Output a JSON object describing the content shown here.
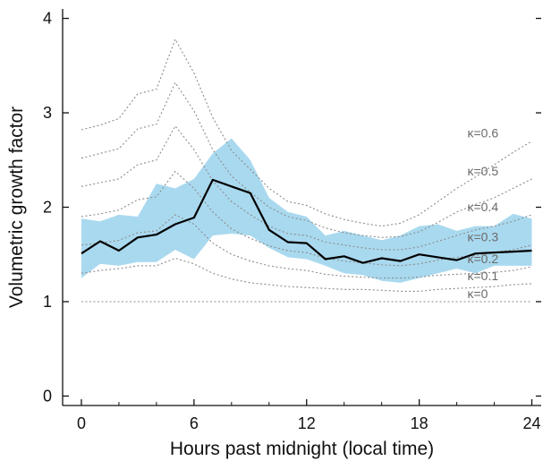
{
  "chart_data": {
    "type": "line",
    "title": "",
    "xlabel": "Hours past midnight (local time)",
    "ylabel": "Volumetric growth factor",
    "xlim": [
      -1,
      24.5
    ],
    "ylim": [
      -0.1,
      4.1
    ],
    "xticks": [
      0,
      6,
      12,
      18,
      24
    ],
    "yticks": [
      0,
      1,
      2,
      3,
      4
    ],
    "grid": false,
    "colors": {
      "band": "#a9d9ef",
      "median": "#000000",
      "kappa_lines": "#8c8c8c",
      "axis": "#111111"
    },
    "x": [
      0,
      1,
      2,
      3,
      4,
      5,
      6,
      7,
      8,
      9,
      10,
      11,
      12,
      13,
      14,
      15,
      16,
      17,
      18,
      19,
      20,
      21,
      22,
      23,
      24
    ],
    "band": {
      "upper": [
        1.88,
        1.85,
        1.92,
        1.9,
        2.25,
        2.2,
        2.3,
        2.57,
        2.73,
        2.5,
        2.1,
        1.95,
        1.9,
        1.7,
        1.75,
        1.7,
        1.65,
        1.7,
        1.8,
        1.82,
        1.75,
        1.8,
        1.8,
        1.93,
        1.88
      ],
      "lower": [
        1.25,
        1.4,
        1.38,
        1.42,
        1.42,
        1.55,
        1.45,
        1.7,
        1.72,
        1.7,
        1.57,
        1.47,
        1.45,
        1.38,
        1.3,
        1.28,
        1.22,
        1.2,
        1.25,
        1.3,
        1.35,
        1.3,
        1.38,
        1.38,
        1.38
      ]
    },
    "series": [
      {
        "values": [
          1.51,
          1.64,
          1.54,
          1.68,
          1.71,
          1.82,
          1.89,
          2.29,
          2.22,
          2.15,
          1.76,
          1.63,
          1.62,
          1.45,
          1.48,
          1.41,
          1.46,
          1.43,
          1.5,
          1.47,
          1.44,
          1.51,
          1.52,
          1.53,
          1.54
        ]
      }
    ],
    "kappa_curves": [
      {
        "label": "κ=0",
        "values": [
          1.0,
          1.0,
          1.0,
          1.0,
          1.0,
          1.0,
          1.0,
          1.0,
          1.0,
          1.0,
          1.0,
          1.0,
          1.0,
          1.0,
          1.0,
          1.0,
          1.0,
          1.0,
          1.0,
          1.0,
          1.0,
          1.0,
          1.0,
          1.0,
          1.0
        ]
      },
      {
        "label": "κ=0.1",
        "values": [
          1.3,
          1.33,
          1.35,
          1.38,
          1.38,
          1.46,
          1.4,
          1.3,
          1.24,
          1.2,
          1.18,
          1.16,
          1.15,
          1.14,
          1.13,
          1.13,
          1.12,
          1.11,
          1.11,
          1.13,
          1.14,
          1.15,
          1.16,
          1.18,
          1.19
        ]
      },
      {
        "label": "κ=0.2",
        "values": [
          1.6,
          1.62,
          1.65,
          1.73,
          1.75,
          1.92,
          1.82,
          1.62,
          1.5,
          1.43,
          1.38,
          1.35,
          1.33,
          1.29,
          1.27,
          1.26,
          1.25,
          1.25,
          1.26,
          1.28,
          1.29,
          1.3,
          1.31,
          1.33,
          1.37
        ]
      },
      {
        "label": "κ=0.3",
        "values": [
          1.9,
          1.93,
          1.97,
          2.08,
          2.11,
          2.38,
          2.2,
          1.95,
          1.77,
          1.67,
          1.59,
          1.54,
          1.52,
          1.46,
          1.43,
          1.41,
          1.39,
          1.38,
          1.4,
          1.44,
          1.47,
          1.49,
          1.52,
          1.55,
          1.6
        ]
      },
      {
        "label": "κ=0.4",
        "values": [
          2.22,
          2.26,
          2.3,
          2.45,
          2.5,
          2.86,
          2.61,
          2.28,
          2.06,
          1.92,
          1.8,
          1.72,
          1.7,
          1.63,
          1.6,
          1.57,
          1.55,
          1.55,
          1.58,
          1.64,
          1.7,
          1.76,
          1.8,
          1.85,
          1.92
        ]
      },
      {
        "label": "κ=0.5",
        "values": [
          2.52,
          2.57,
          2.62,
          2.83,
          2.88,
          3.32,
          3.02,
          2.61,
          2.33,
          2.16,
          2.0,
          1.9,
          1.86,
          1.78,
          1.73,
          1.7,
          1.68,
          1.69,
          1.74,
          1.84,
          1.95,
          2.03,
          2.1,
          2.2,
          2.3
        ]
      },
      {
        "label": "κ=0.6",
        "values": [
          2.82,
          2.87,
          2.94,
          3.2,
          3.25,
          3.78,
          3.42,
          2.95,
          2.6,
          2.4,
          2.2,
          2.06,
          2.02,
          1.93,
          1.87,
          1.83,
          1.8,
          1.83,
          1.92,
          2.06,
          2.2,
          2.32,
          2.45,
          2.58,
          2.7
        ]
      }
    ]
  }
}
